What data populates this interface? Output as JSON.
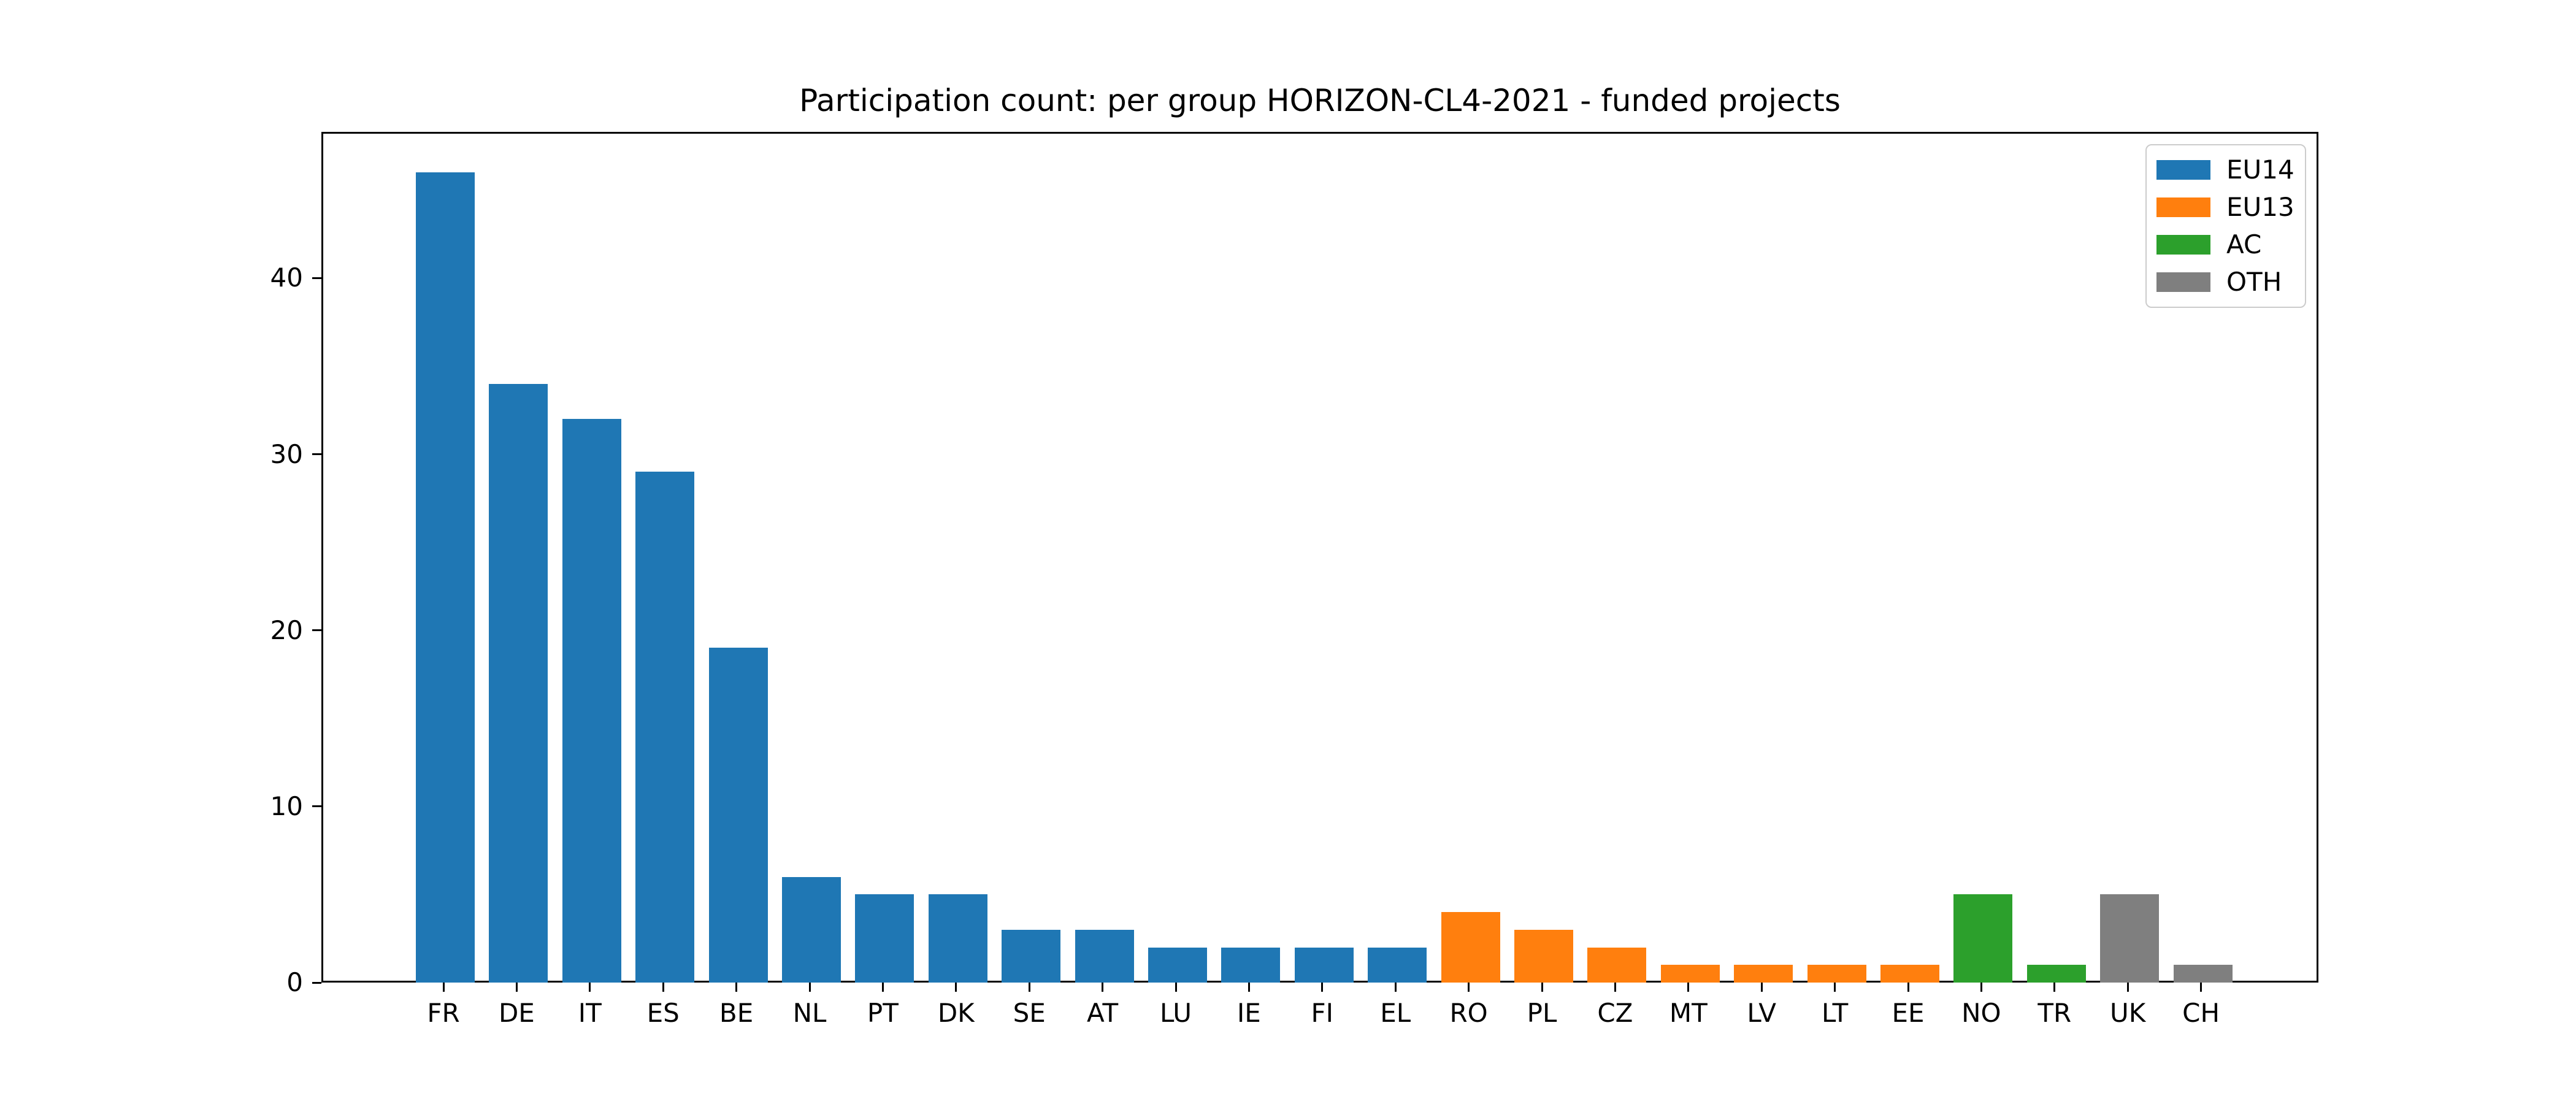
{
  "chart_data": {
    "type": "bar",
    "title": "Participation count: per group HORIZON-CL4-2021 - funded projects",
    "xlabel": "",
    "ylabel": "",
    "categories": [
      "FR",
      "DE",
      "IT",
      "ES",
      "BE",
      "NL",
      "PT",
      "DK",
      "SE",
      "AT",
      "LU",
      "IE",
      "FI",
      "EL",
      "RO",
      "PL",
      "CZ",
      "MT",
      "LV",
      "LT",
      "EE",
      "NO",
      "TR",
      "UK",
      "CH"
    ],
    "values": [
      46,
      34,
      32,
      29,
      19,
      6,
      5,
      5,
      3,
      3,
      2,
      2,
      2,
      2,
      4,
      3,
      2,
      1,
      1,
      1,
      1,
      5,
      1,
      5,
      1
    ],
    "groups": [
      "EU14",
      "EU14",
      "EU14",
      "EU14",
      "EU14",
      "EU14",
      "EU14",
      "EU14",
      "EU14",
      "EU14",
      "EU14",
      "EU14",
      "EU14",
      "EU14",
      "EU13",
      "EU13",
      "EU13",
      "EU13",
      "EU13",
      "EU13",
      "EU13",
      "AC",
      "AC",
      "OTH",
      "OTH"
    ],
    "group_colors": {
      "EU14": "#1f77b4",
      "EU13": "#ff7f0e",
      "AC": "#2ca02c",
      "OTH": "#7f7f7f"
    },
    "legend": [
      {
        "label": "EU14",
        "color": "#1f77b4"
      },
      {
        "label": "EU13",
        "color": "#ff7f0e"
      },
      {
        "label": "AC",
        "color": "#2ca02c"
      },
      {
        "label": "OTH",
        "color": "#7f7f7f"
      }
    ],
    "legend_position": "upper right",
    "grid": false,
    "yticks": [
      0,
      10,
      20,
      30,
      40
    ],
    "ylim": [
      0,
      48.3
    ],
    "axis_color": "#000000",
    "background_color": "#ffffff"
  }
}
